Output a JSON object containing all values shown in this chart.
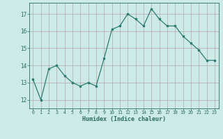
{
  "xlabel": "Humidex (Indice chaleur)",
  "x": [
    0,
    1,
    2,
    3,
    4,
    5,
    6,
    7,
    8,
    9,
    10,
    11,
    12,
    13,
    14,
    15,
    16,
    17,
    18,
    19,
    20,
    21,
    22,
    23
  ],
  "y": [
    13.2,
    12.0,
    13.8,
    14.0,
    13.4,
    13.0,
    12.8,
    13.0,
    12.8,
    14.4,
    16.1,
    16.3,
    17.0,
    16.7,
    16.3,
    17.3,
    16.7,
    16.3,
    16.3,
    15.7,
    15.3,
    14.9,
    14.3,
    14.3
  ],
  "ylim": [
    11.5,
    17.65
  ],
  "yticks": [
    12,
    13,
    14,
    15,
    16,
    17
  ],
  "xticks": [
    0,
    1,
    2,
    3,
    4,
    5,
    6,
    7,
    8,
    9,
    10,
    11,
    12,
    13,
    14,
    15,
    16,
    17,
    18,
    19,
    20,
    21,
    22,
    23
  ],
  "line_color": "#2a7d70",
  "marker_color": "#2a7d70",
  "bg_color": "#cceae8",
  "grid_color": "#b8a8a8",
  "axis_label_color": "#2a6e60",
  "tick_color": "#2a6e60"
}
